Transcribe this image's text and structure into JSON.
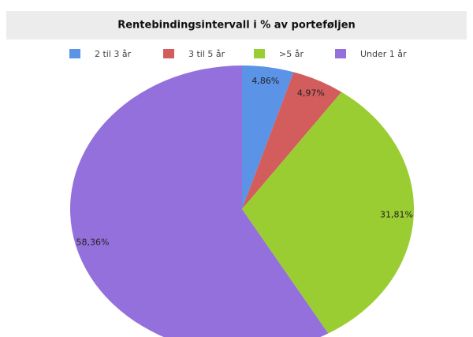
{
  "chart_data": {
    "type": "pie",
    "title": "Rentebindingsintervall i % av porteføljen",
    "categories": [
      "2 til 3 år",
      "3 til 5 år",
      ">5 år",
      "Under 1 år"
    ],
    "values": [
      4.86,
      4.97,
      31.81,
      58.36
    ],
    "value_labels": [
      "4,86%",
      "4,97%",
      "31,81%",
      "58,36%"
    ],
    "colors": [
      "#5b93e6",
      "#d35c5c",
      "#9acd32",
      "#9370db"
    ],
    "legend": "top"
  }
}
